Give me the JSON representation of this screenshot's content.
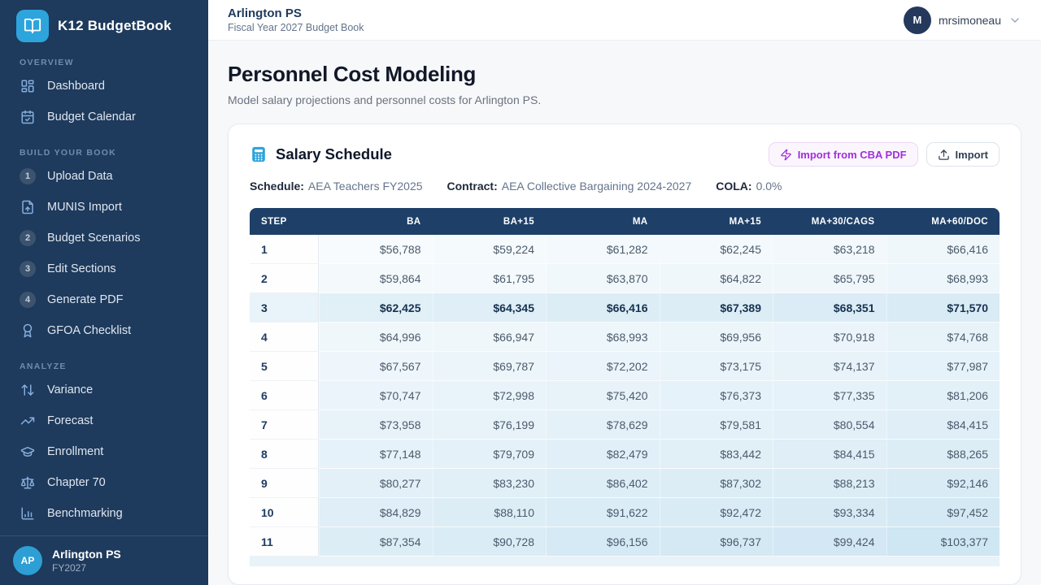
{
  "colors": {
    "accent_blue": "#2da4dc",
    "sidebar_bg": "#1e3a5c",
    "table_header_bg": "#1e4068",
    "cba_purple": "#a030d8",
    "heat_rgb": "56,152,205"
  },
  "sidebar": {
    "logo": {
      "title": "K12 BudgetBook",
      "icon": "book-open-icon"
    },
    "sections": [
      {
        "label": "OVERVIEW",
        "items": [
          {
            "icon": "dashboard-icon",
            "label": "Dashboard"
          },
          {
            "icon": "calendar-icon",
            "label": "Budget Calendar"
          }
        ]
      },
      {
        "label": "BUILD YOUR BOOK",
        "items": [
          {
            "badge": "1",
            "label": "Upload Data"
          },
          {
            "icon": "file-up-icon",
            "label": "MUNIS Import"
          },
          {
            "badge": "2",
            "label": "Budget Scenarios"
          },
          {
            "badge": "3",
            "label": "Edit Sections"
          },
          {
            "badge": "4",
            "label": "Generate PDF"
          },
          {
            "icon": "award-icon",
            "label": "GFOA Checklist"
          }
        ]
      },
      {
        "label": "ANALYZE",
        "items": [
          {
            "icon": "arrows-up-down-icon",
            "label": "Variance"
          },
          {
            "icon": "trending-up-icon",
            "label": "Forecast"
          },
          {
            "icon": "graduation-cap-icon",
            "label": "Enrollment"
          },
          {
            "icon": "scale-icon",
            "label": "Chapter 70"
          },
          {
            "icon": "bar-chart-icon",
            "label": "Benchmarking"
          }
        ]
      }
    ],
    "footer": {
      "initials": "AP",
      "district": "Arlington PS",
      "year": "FY2027"
    }
  },
  "header": {
    "district": "Arlington PS",
    "subtitle": "Fiscal Year 2027 Budget Book",
    "user": {
      "initial": "M",
      "name": "mrsimoneau",
      "menu_icon": "chevron-down-icon"
    }
  },
  "page": {
    "title": "Personnel Cost Modeling",
    "subtitle": "Model salary projections and personnel costs for Arlington PS."
  },
  "card": {
    "title": "Salary Schedule",
    "title_icon": "calculator-icon",
    "import_cba_label": "Import from CBA PDF",
    "import_label": "Import",
    "meta": [
      {
        "label": "Schedule:",
        "value": "AEA Teachers FY2025"
      },
      {
        "label": "Contract:",
        "value": "AEA Collective Bargaining 2024-2027"
      },
      {
        "label": "COLA:",
        "value": "0.0%"
      }
    ]
  },
  "table": {
    "columns": [
      "STEP",
      "BA",
      "BA+15",
      "MA",
      "MA+15",
      "MA+30/CAGS",
      "MA+60/DOC"
    ],
    "highlighted_step": 3,
    "rows": [
      {
        "step": 1,
        "values": [
          56788,
          59224,
          61282,
          62245,
          63218,
          66416
        ]
      },
      {
        "step": 2,
        "values": [
          59864,
          61795,
          63870,
          64822,
          65795,
          68993
        ]
      },
      {
        "step": 3,
        "values": [
          62425,
          64345,
          66416,
          67389,
          68351,
          71570
        ]
      },
      {
        "step": 4,
        "values": [
          64996,
          66947,
          68993,
          69956,
          70918,
          74768
        ]
      },
      {
        "step": 5,
        "values": [
          67567,
          69787,
          72202,
          73175,
          74137,
          77987
        ]
      },
      {
        "step": 6,
        "values": [
          70747,
          72998,
          75420,
          76373,
          77335,
          81206
        ]
      },
      {
        "step": 7,
        "values": [
          73958,
          76199,
          78629,
          79581,
          80554,
          84415
        ]
      },
      {
        "step": 8,
        "values": [
          77148,
          79709,
          82479,
          83442,
          84415,
          88265
        ]
      },
      {
        "step": 9,
        "values": [
          80277,
          83230,
          86402,
          87302,
          88213,
          92146
        ]
      },
      {
        "step": 10,
        "values": [
          84829,
          88110,
          91622,
          92472,
          93334,
          97452
        ]
      },
      {
        "step": 11,
        "values": [
          87354,
          90728,
          96156,
          96737,
          99424,
          103377
        ]
      }
    ]
  }
}
